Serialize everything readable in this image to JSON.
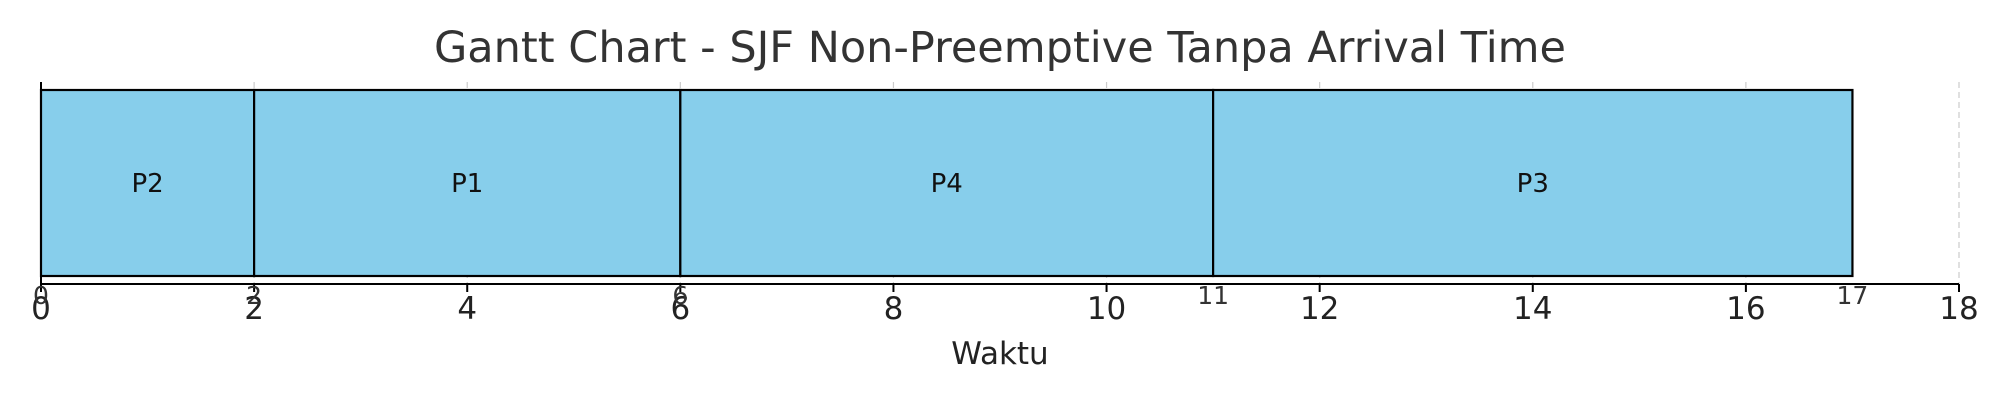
{
  "chart_data": {
    "type": "gantt",
    "title": "Gantt Chart - SJF Non-Preemptive Tanpa Arrival Time",
    "xlabel": "Waktu",
    "xlim": [
      0,
      18
    ],
    "x_ticks": [
      "0",
      "2",
      "4",
      "6",
      "8",
      "10",
      "12",
      "14",
      "16",
      "18"
    ],
    "grid": "vertical dashed",
    "bar_color": "#87CEEB",
    "tasks": [
      {
        "label": "P2",
        "start": 0,
        "end": 2
      },
      {
        "label": "P1",
        "start": 2,
        "end": 6
      },
      {
        "label": "P4",
        "start": 6,
        "end": 11
      },
      {
        "label": "P3",
        "start": 11,
        "end": 17
      }
    ],
    "boundary_labels": [
      "0",
      "2",
      "6",
      "11",
      "17"
    ]
  }
}
